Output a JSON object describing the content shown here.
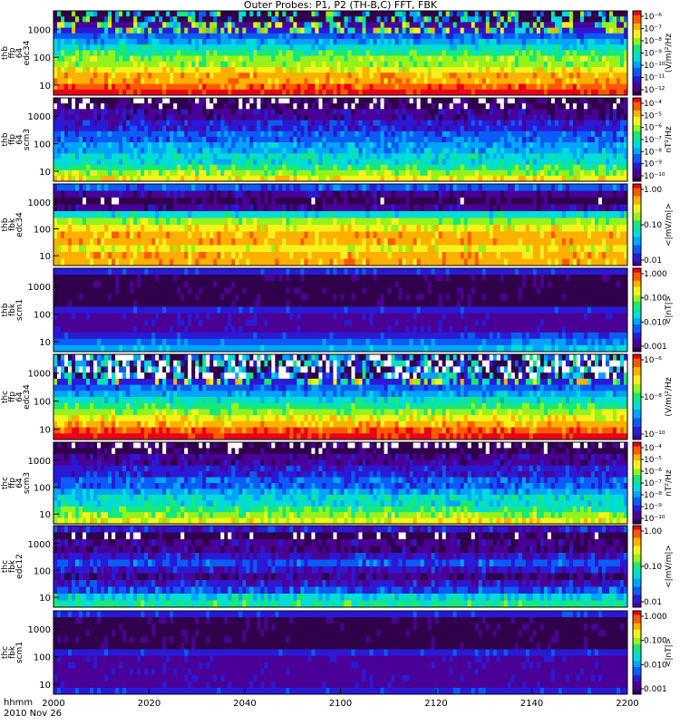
{
  "title": "Outer Probes: P1, P2 (TH-B,C) FFT, FBK",
  "colors": {
    "palette": [
      "#30004a",
      "#4a0096",
      "#2a1ad6",
      "#0a5cf5",
      "#00a5ff",
      "#00dcd6",
      "#16e87a",
      "#96f21a",
      "#f5f21a",
      "#ffb000",
      "#ff5a00",
      "#e8001a"
    ]
  },
  "chart_data": {
    "type": "heatmap",
    "title": "Outer Probes: P1, P2 (TH-B,C) FFT, FBK",
    "x": {
      "label_line1": "hhmm",
      "label_line2": "2010 Nov 26",
      "ticks": [
        "2000",
        "2020",
        "2040",
        "2100",
        "2120",
        "2140",
        "2200"
      ]
    },
    "panels": [
      {
        "id": "thb-ffp64-edc34",
        "ylabel": [
          "thb",
          "ffp",
          "64",
          "edc34"
        ],
        "yticks": [
          "1000",
          "100",
          "10"
        ],
        "cbar_label": "(V/m)²/Hz",
        "cbar_ticks": [
          "10⁻⁶",
          "10⁻⁷",
          "10⁻⁸",
          "10⁻⁹",
          "10⁻¹⁰",
          "10⁻¹¹",
          "10⁻¹²"
        ],
        "bands": [
          0,
          0,
          1,
          2,
          3,
          4,
          5,
          6,
          7,
          7,
          8,
          9,
          9,
          10,
          11
        ],
        "pattern": "spiky"
      },
      {
        "id": "thb-ffp64-scm3",
        "ylabel": [
          "thb",
          "ffp",
          "64",
          "scm3"
        ],
        "yticks": [
          "1000",
          "100",
          "10"
        ],
        "cbar_label": "nT²/Hz",
        "cbar_ticks": [
          "10⁻⁴",
          "10⁻⁵",
          "10⁻⁶",
          "10⁻⁷",
          "10⁻⁸",
          "10⁻⁹",
          "10⁻¹⁰"
        ],
        "bands": [
          -1,
          -1,
          1,
          1,
          2,
          2,
          3,
          3,
          4,
          4,
          5,
          5,
          6,
          7,
          8
        ],
        "pattern": "noisy"
      },
      {
        "id": "thb-fbk-edc34",
        "ylabel": [
          "thb",
          "fbk",
          "edc34"
        ],
        "yticks": [
          "1000",
          "100",
          "10"
        ],
        "cbar_label": "<|mV/m|>",
        "cbar_ticks": [
          "1.00",
          "0.10",
          "0.01"
        ],
        "bands": [
          3,
          1,
          0,
          1,
          5,
          7,
          8,
          9,
          9,
          8,
          9,
          9
        ],
        "pattern": "blocky"
      },
      {
        "id": "thb-fbk-scm1",
        "ylabel": [
          "thb",
          "fbk",
          "scm1"
        ],
        "yticks": [
          "1000",
          "100",
          "10"
        ],
        "cbar_label": "<|nT|>",
        "cbar_ticks": [
          "1.000",
          "0.100",
          "0.010",
          "0.001"
        ],
        "bands": [
          2,
          0,
          0,
          0,
          0,
          0,
          2,
          1,
          1,
          1,
          2,
          3,
          4
        ],
        "pattern": "smooth"
      },
      {
        "id": "thc-ffp64-edc34",
        "ylabel": [
          "thc",
          "ffp",
          "64",
          "edc34"
        ],
        "yticks": [
          "1000",
          "100",
          "10"
        ],
        "cbar_label": "(V/m)²/Hz",
        "cbar_ticks": [
          "10⁻⁶",
          "10⁻⁸",
          "10⁻¹⁰"
        ],
        "bands": [
          -1,
          -1,
          -1,
          -1,
          2,
          3,
          4,
          5,
          6,
          7,
          8,
          9,
          10,
          11
        ],
        "pattern": "spiky"
      },
      {
        "id": "thc-ffp64-scm3",
        "ylabel": [
          "thc",
          "ffp",
          "64",
          "scm3"
        ],
        "yticks": [
          "1000",
          "100",
          "10"
        ],
        "cbar_label": "nT²/Hz",
        "cbar_ticks": [
          "10⁻⁴",
          "10⁻⁵",
          "10⁻⁶",
          "10⁻⁷",
          "10⁻⁸",
          "10⁻⁹",
          "10⁻¹⁰"
        ],
        "bands": [
          -1,
          0,
          1,
          1,
          2,
          2,
          3,
          3,
          4,
          5,
          5,
          6,
          7,
          8
        ],
        "pattern": "noisy"
      },
      {
        "id": "thc-fbk-edc12",
        "ylabel": [
          "thc",
          "fbk",
          "edc12"
        ],
        "yticks": [
          "1000",
          "100",
          "10"
        ],
        "cbar_label": "<|mV/m|>",
        "cbar_ticks": [
          "1.00",
          "0.10",
          "0.01"
        ],
        "bands": [
          2,
          0,
          1,
          1,
          2,
          3,
          2,
          1,
          2,
          3,
          5,
          6
        ],
        "pattern": "striped"
      },
      {
        "id": "thc-fbk-scm1",
        "ylabel": [
          "thc",
          "fbk",
          "scm1"
        ],
        "yticks": [
          "1000",
          "100",
          "10"
        ],
        "cbar_label": "<|nT|>",
        "cbar_ticks": [
          "1.000",
          "0.100",
          "0.010",
          "0.001"
        ],
        "bands": [
          2,
          0,
          0,
          0,
          0,
          0,
          2,
          1,
          1,
          1,
          1,
          1,
          2
        ],
        "pattern": "smooth"
      }
    ]
  }
}
